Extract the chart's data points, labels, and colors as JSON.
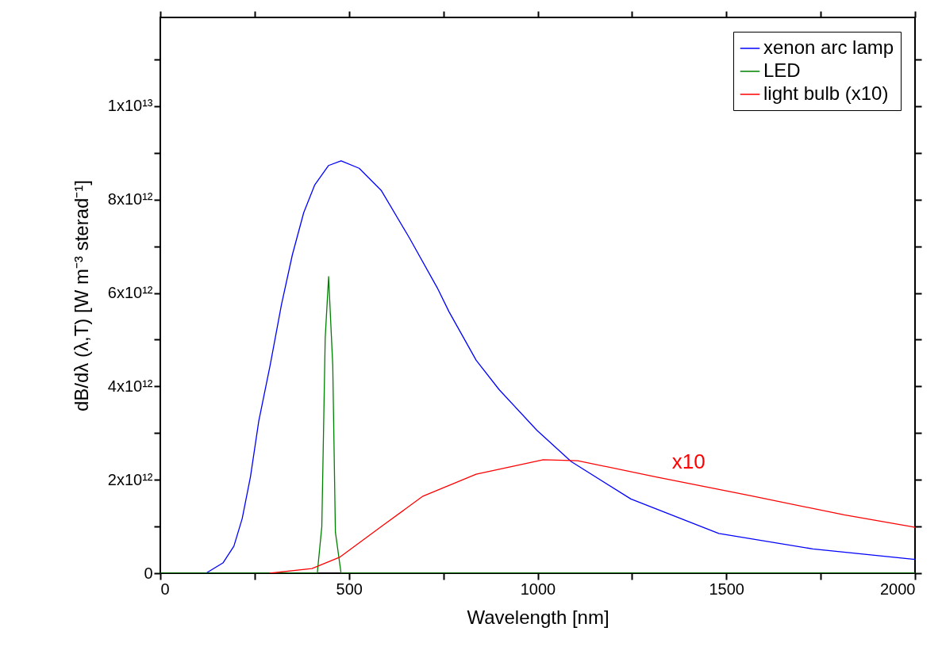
{
  "chart_data": {
    "type": "line",
    "xlabel": "Wavelength [nm]",
    "ylabel": "dB/dλ (λ,T)   [W m⁻³ sterad⁻¹]",
    "xlim": [
      0,
      2000
    ],
    "ylim": [
      0,
      11900000000000.0
    ],
    "xticks": [
      0,
      {
        "value": 250,
        "label": null
      },
      500,
      {
        "value": 750,
        "label": null
      },
      1000,
      {
        "value": 1250,
        "label": null
      },
      1500,
      {
        "value": 1750,
        "label": null
      },
      2000
    ],
    "yticks": [
      0,
      {
        "value": 1000000000000.0,
        "label": null
      },
      {
        "value": 2000000000000.0,
        "label": "2x10¹²"
      },
      {
        "value": 3000000000000.0,
        "label": null
      },
      {
        "value": 4000000000000.0,
        "label": "4x10¹²"
      },
      {
        "value": 5000000000000.0,
        "label": null
      },
      {
        "value": 6000000000000.0,
        "label": "6x10¹²"
      },
      {
        "value": 7000000000000.0,
        "label": null
      },
      {
        "value": 8000000000000.0,
        "label": "8x10¹²"
      },
      {
        "value": 9000000000000.0,
        "label": null
      },
      {
        "value": 10000000000000.0,
        "label": "1x10¹³"
      },
      {
        "value": 11000000000000.0,
        "label": null
      }
    ],
    "grid": false,
    "legend": "top right",
    "marker": "none",
    "line_style": "solid",
    "series": [
      {
        "name": "xenon arc lamp",
        "color": "#0000ff",
        "x": [
          121,
          166,
          195,
          217,
          239,
          261,
          291,
          321,
          350,
          380,
          409,
          446,
          479,
          527,
          586,
          660,
          734,
          765,
          837,
          898,
          998,
          1089,
          1247,
          1480,
          1729,
          1995,
          2000
        ],
        "values": [
          0,
          220000000000.0,
          580000000000.0,
          1170000000000.0,
          2070000000000.0,
          3260000000000.0,
          4450000000000.0,
          5750000000000.0,
          6820000000000.0,
          7720000000000.0,
          8310000000000.0,
          8730000000000.0,
          8830000000000.0,
          8670000000000.0,
          8190000000000.0,
          7180000000000.0,
          6110000000000.0,
          5600000000000.0,
          4560000000000.0,
          3930000000000.0,
          3060000000000.0,
          2390000000000.0,
          1590000000000.0,
          850000000000.0,
          520000000000.0,
          300000000000.0,
          300000000000.0
        ]
      },
      {
        "name": "LED",
        "color": "#008000",
        "x": [
          0,
          416,
          428,
          437,
          446,
          457,
          464,
          479,
          2000
        ],
        "values": [
          0,
          0,
          1000000000000.0,
          5040000000000.0,
          6350000000000.0,
          4450000000000.0,
          880000000000.0,
          0,
          0
        ]
      },
      {
        "name": "light bulb (x10)",
        "color": "#ff0000",
        "x": [
          290,
          402,
          475,
          586,
          696,
          837,
          1015,
          1106,
          1314,
          1563,
          1812,
          1995,
          2000
        ],
        "values": [
          0,
          100000000000.0,
          340000000000.0,
          1000000000000.0,
          1650000000000.0,
          2120000000000.0,
          2430000000000.0,
          2410000000000.0,
          2060000000000.0,
          1660000000000.0,
          1250000000000.0,
          990000000000.0,
          980000000000.0
        ]
      }
    ],
    "annotations": [
      "x10"
    ]
  }
}
